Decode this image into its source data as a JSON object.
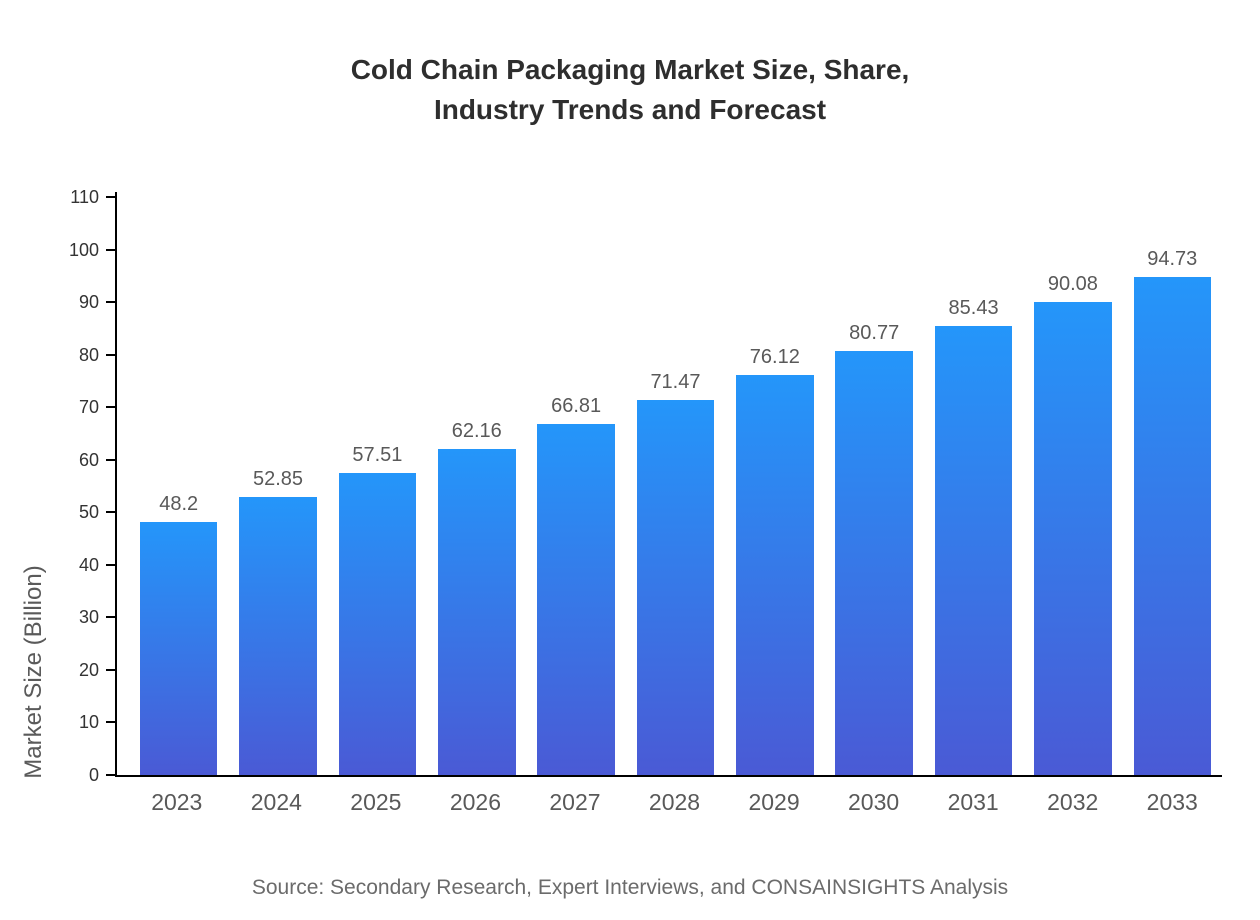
{
  "header": {
    "title": "Cold Chain Packaging Market Size, Share,\nIndustry Trends and Forecast"
  },
  "footer": {
    "source": "Source: Secondary Research, Expert Interviews, and CONSAINSIGHTS Analysis"
  },
  "chart_data": {
    "type": "bar",
    "title": "Cold Chain Packaging Market Size, Share, Industry Trends and Forecast",
    "categories": [
      "2023",
      "2024",
      "2025",
      "2026",
      "2027",
      "2028",
      "2029",
      "2030",
      "2031",
      "2032",
      "2033"
    ],
    "values": [
      48.2,
      52.85,
      57.51,
      62.16,
      66.81,
      71.47,
      76.12,
      80.77,
      85.43,
      90.08,
      94.73
    ],
    "labels": [
      "48.2",
      "52.85",
      "57.51",
      "62.16",
      "66.81",
      "71.47",
      "76.12",
      "80.77",
      "85.43",
      "90.08",
      "94.73"
    ],
    "xlabel": "",
    "ylabel": "Market Size (Billion)",
    "ylim": [
      0,
      110
    ],
    "y_ticks": [
      0,
      10,
      20,
      30,
      40,
      50,
      60,
      70,
      80,
      90,
      100,
      110
    ],
    "grid": false,
    "legend": "none",
    "bar_color_top": "#2496fa",
    "bar_color_bottom": "#4a5ad5",
    "axis_color": "#000000"
  }
}
